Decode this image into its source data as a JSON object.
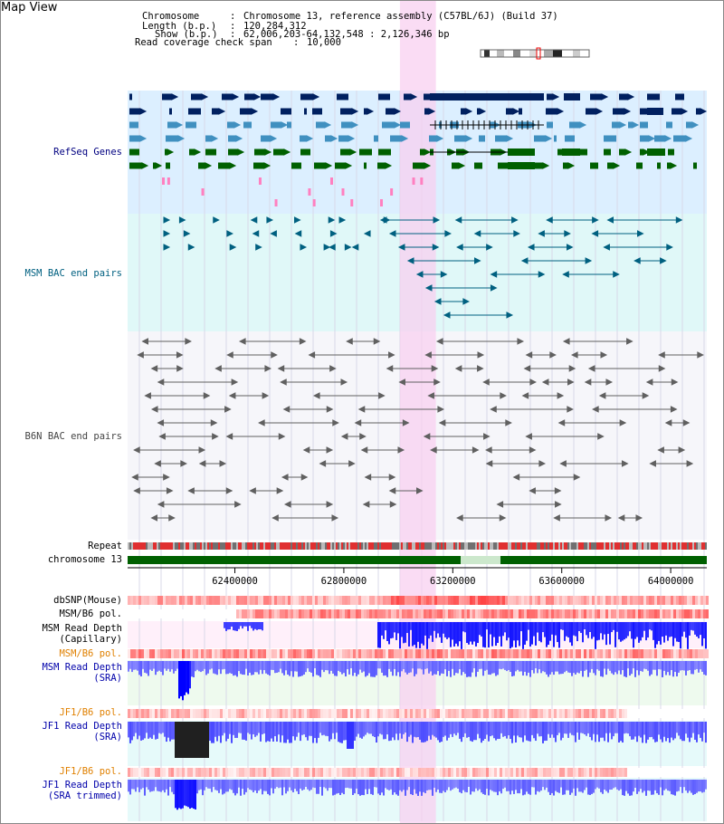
{
  "title": "Map View",
  "info": {
    "chromosome_key": "Chromosome",
    "chromosome_val": "Chromosome 13, reference assembly (C57BL/6J) (Build 37)",
    "length_key": "Length (b.p.)",
    "length_val": "120,284,312",
    "show_key": "Show (b.p.)",
    "show_val": "62,006,203-64,132,548 : 2,126,346 bp",
    "coverage_key": "Read coverage check span",
    "coverage_val": "10,000"
  },
  "tracks": {
    "refseq": "RefSeq Genes",
    "msm_bac": "MSM BAC end pairs",
    "b6n_bac": "B6N BAC end pairs",
    "repeat": "Repeat",
    "chromosome": "chromosome 13",
    "dbsnp": "dbSNP(Mouse)",
    "msm_b6_pol": "MSM/B6 pol.",
    "msm_read_depth_cap_1": "MSM Read Depth",
    "msm_read_depth_cap_2": "(Capillary)",
    "msm_b6_pol_2": "MSM/B6 pol.",
    "msm_read_depth_sra_1": "MSM Read Depth",
    "msm_read_depth_sra_2": "(SRA)",
    "jf1_b6_pol": "JF1/B6 pol.",
    "jf1_read_depth_sra_1": "JF1 Read Depth",
    "jf1_read_depth_sra_2": "(SRA)",
    "jf1_b6_pol_2": "JF1/B6 pol.",
    "jf1_read_depth_trim_1": "JF1 Read Depth",
    "jf1_read_depth_trim_2": "(SRA trimmed)"
  },
  "axis": {
    "ticks": [
      "62400000",
      "62800000",
      "63200000",
      "63600000",
      "64000000"
    ],
    "range_bp": [
      62006203,
      64132548
    ]
  },
  "highlight_range_bp": [
    63006000,
    63138000
  ],
  "colors": {
    "refseq_bg": "#dcefff",
    "msm_bg": "#e0f8f8",
    "highlight": "#f8d0f0",
    "gene_dark": "#002060",
    "gene_mid": "#4090c0",
    "gene_green": "#006000",
    "gene_pink": "#ff80c0",
    "bac_teal": "#006080",
    "bac_gray": "#606060",
    "chrom_green": "#006000",
    "depth_blue": "#0000ff",
    "label_navy": "#000080",
    "label_orange": "#e08000"
  }
}
